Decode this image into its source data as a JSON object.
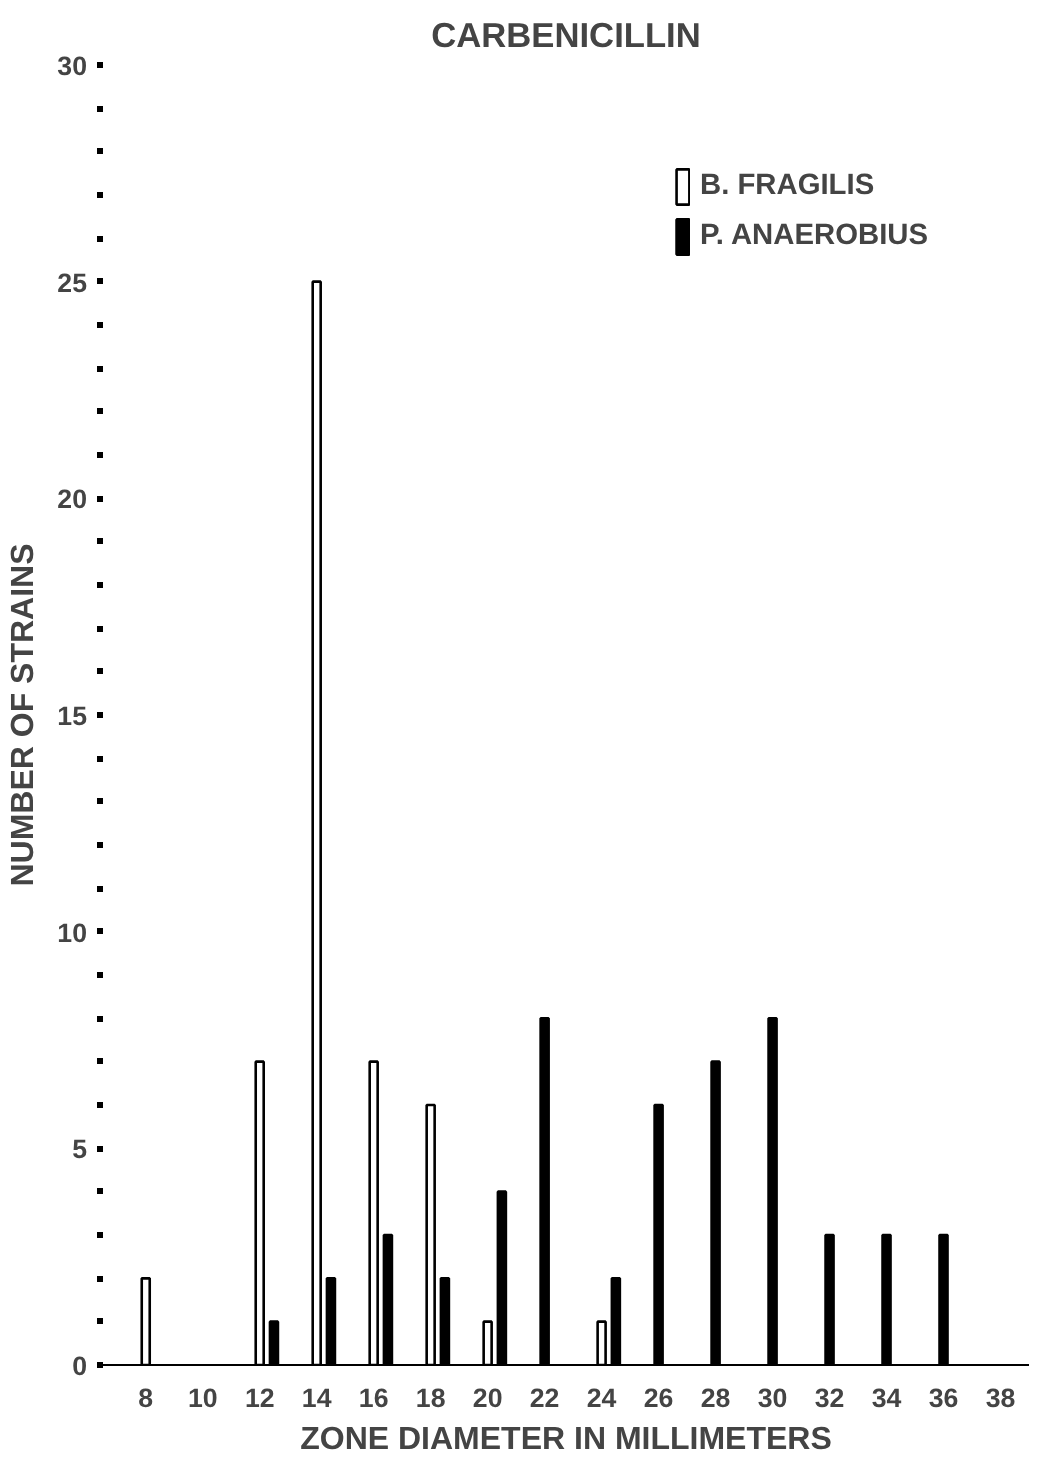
{
  "chart_data": {
    "type": "bar",
    "title": "CARBENICILLIN",
    "xlabel": "ZONE DIAMETER IN MILLIMETERS",
    "ylabel": "NUMBER OF STRAINS",
    "series": [
      {
        "name": "B. FRAGILIS",
        "color": "#ffffff",
        "x": [
          8,
          12,
          14,
          16,
          18,
          20,
          24
        ],
        "values": [
          2,
          7,
          25,
          7,
          6,
          1,
          1
        ]
      },
      {
        "name": "P. ANAEROBIUS",
        "color": "#000000",
        "x": [
          12.5,
          14.5,
          16.5,
          18.5,
          20.5,
          22,
          24.5,
          26,
          28,
          30,
          32,
          34,
          36
        ],
        "values": [
          1,
          2,
          3,
          2,
          4,
          8,
          2,
          6,
          7,
          8,
          3,
          3,
          3
        ]
      }
    ],
    "xlim": [
      6.5,
      39
    ],
    "xticks": [
      8,
      10,
      12,
      14,
      16,
      18,
      20,
      22,
      24,
      26,
      28,
      30,
      32,
      34,
      36,
      38
    ],
    "ylim": [
      0,
      30
    ],
    "yticks": [
      0,
      5,
      10,
      15,
      20,
      25,
      30
    ],
    "grid": false,
    "legend": "top right"
  }
}
